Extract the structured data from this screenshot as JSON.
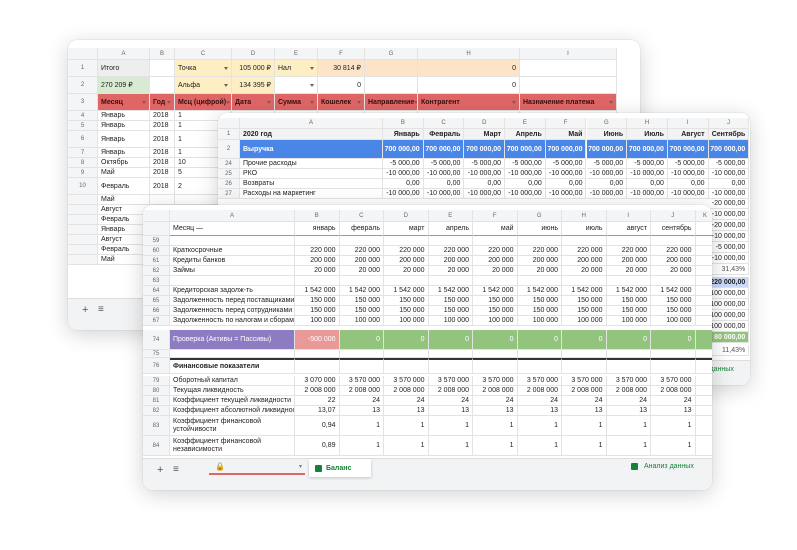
{
  "sheet1": {
    "columns": [
      "A",
      "B",
      "C",
      "D",
      "E",
      "F",
      "G",
      "H",
      "I"
    ],
    "rows": [
      {
        "num": "1",
        "cells": [
          "Итого",
          null,
          "Точка",
          "105 000 ₽",
          "Нал",
          "30 814 ₽",
          null,
          "0"
        ]
      },
      {
        "num": "2",
        "cells": [
          "270 209 ₽",
          null,
          "Альфа",
          "134 395 ₽",
          null,
          "0",
          null,
          "0"
        ]
      },
      {
        "num": "3",
        "cells": [
          "Месяц",
          "Год",
          "Мсц (цифрой)",
          "Дата",
          "Сумма",
          "Кошелек",
          "Направление",
          "Контрагент",
          "Назначение платежа"
        ]
      },
      {
        "num": "4",
        "cells": [
          "Январь",
          "2018",
          "1"
        ]
      },
      {
        "num": "5",
        "cells": [
          "Январь",
          "2018",
          "1"
        ]
      },
      {
        "num": "6",
        "cells": [
          "Январь",
          "2018",
          "1"
        ]
      },
      {
        "num": "7",
        "cells": [
          "Январь",
          "2018",
          "1"
        ]
      },
      {
        "num": "8",
        "cells": [
          "Октябрь",
          "2018",
          "10"
        ]
      },
      {
        "num": "9",
        "cells": [
          "Май",
          "2018",
          "5"
        ]
      },
      {
        "num": "10",
        "cells": [
          "Февраль",
          "2018",
          "2"
        ]
      },
      {
        "num": null,
        "cells": [
          "Май"
        ]
      },
      {
        "num": null,
        "cells": [
          "Август"
        ]
      },
      {
        "num": null,
        "cells": [
          "Февраль"
        ]
      },
      {
        "num": null,
        "cells": [
          "Январь"
        ]
      },
      {
        "num": null,
        "cells": [
          "Август"
        ]
      },
      {
        "num": null,
        "cells": [
          "Февраль"
        ]
      },
      {
        "num": null,
        "cells": [
          "Май"
        ]
      }
    ]
  },
  "sheet2": {
    "columns": [
      "A",
      "B",
      "C",
      "D",
      "E",
      "F",
      "G",
      "H",
      "I",
      "J"
    ],
    "rows": [
      {
        "num": "1",
        "cells": [
          "2020 год",
          "Январь",
          "Февраль",
          "Март",
          "Апрель",
          "Май",
          "Июнь",
          "Июль",
          "Август",
          "Сентябрь"
        ]
      },
      {
        "num": "2",
        "cells": [
          "Выручка",
          "700 000,00",
          "700 000,00",
          "700 000,00",
          "700 000,00",
          "700 000,00",
          "700 000,00",
          "700 000,00",
          "700 000,00",
          "700 000,00"
        ]
      },
      {
        "num": "24",
        "cells": [
          "Прочие расходы",
          "-5 000,00",
          "-5 000,00",
          "-5 000,00",
          "-5 000,00",
          "-5 000,00",
          "-5 000,00",
          "-5 000,00",
          "-5 000,00",
          "-5 000,00"
        ]
      },
      {
        "num": "25",
        "cells": [
          "РКО",
          "-10 000,00",
          "-10 000,00",
          "-10 000,00",
          "-10 000,00",
          "-10 000,00",
          "-10 000,00",
          "-10 000,00",
          "-10 000,00",
          "-10 000,00"
        ]
      },
      {
        "num": "26",
        "cells": [
          "Возвраты",
          "0,00",
          "0,00",
          "0,00",
          "0,00",
          "0,00",
          "0,00",
          "0,00",
          "0,00",
          "0,00"
        ]
      },
      {
        "num": "27",
        "cells": [
          "Расходы на маркетинг",
          "-10 000,00",
          "-10 000,00",
          "-10 000,00",
          "-10 000,00",
          "-10 000,00",
          "-10 000,00",
          "-10 000,00",
          "-10 000,00",
          "-10 000,00"
        ]
      }
    ],
    "column_j_more": [
      "-20 000,00",
      "-10 000,00",
      "-20 000,00",
      "-10 000,00",
      "-5 000,00",
      "-10 000,00",
      "31,43%",
      "220 000,00",
      "100 000,00",
      "100 000,00",
      "100 000,00",
      "100 000,00",
      "80 000,00",
      "11,43%"
    ],
    "tabs": {
      "analysis": "Анализ данных"
    }
  },
  "sheet3": {
    "columns": [
      "A",
      "B",
      "C",
      "D",
      "E",
      "F",
      "G",
      "H",
      "I",
      "J",
      "K"
    ],
    "rows": [
      {
        "num": null,
        "cells": [
          "Месяц —",
          "январь",
          "февраль",
          "март",
          "апрель",
          "май",
          "июнь",
          "июль",
          "август",
          "сентябрь"
        ]
      },
      {
        "num": "59",
        "cells": []
      },
      {
        "num": "60",
        "cells": [
          "Краткосрочные",
          "220 000",
          "220 000",
          "220 000",
          "220 000",
          "220 000",
          "220 000",
          "220 000",
          "220 000",
          "220 000"
        ]
      },
      {
        "num": "61",
        "cells": [
          "Кредиты банков",
          "200 000",
          "200 000",
          "200 000",
          "200 000",
          "200 000",
          "200 000",
          "200 000",
          "200 000",
          "200 000"
        ]
      },
      {
        "num": "62",
        "cells": [
          "Займы",
          "20 000",
          "20 000",
          "20 000",
          "20 000",
          "20 000",
          "20 000",
          "20 000",
          "20 000",
          "20 000"
        ]
      },
      {
        "num": "63",
        "cells": []
      },
      {
        "num": "64",
        "cells": [
          "Кредиторская задолж-ть",
          "1 542 000",
          "1 542 000",
          "1 542 000",
          "1 542 000",
          "1 542 000",
          "1 542 000",
          "1 542 000",
          "1 542 000",
          "1 542 000"
        ]
      },
      {
        "num": "65",
        "cells": [
          "Задолженность перед поставщиками",
          "150 000",
          "150 000",
          "150 000",
          "150 000",
          "150 000",
          "150 000",
          "150 000",
          "150 000",
          "150 000"
        ]
      },
      {
        "num": "66",
        "cells": [
          "Задолженность перед сотрудниками",
          "150 000",
          "150 000",
          "150 000",
          "150 000",
          "150 000",
          "150 000",
          "150 000",
          "150 000",
          "150 000"
        ]
      },
      {
        "num": "67",
        "cells": [
          "Задолженность по налогам и сборам",
          "100 000",
          "100 000",
          "100 000",
          "100 000",
          "100 000",
          "100 000",
          "100 000",
          "100 000",
          "100 000"
        ]
      },
      {
        "num": "74",
        "cells": [
          "Проверка (Активы = Пассивы)",
          "-500 000",
          "0",
          "0",
          "0",
          "0",
          "0",
          "0",
          "0",
          "0"
        ]
      },
      {
        "num": "75",
        "cells": []
      },
      {
        "num": "76",
        "cells": [
          "Финансовые показатели"
        ]
      },
      {
        "num": "79",
        "cells": [
          "Оборотный капитал",
          "3 070 000",
          "3 570 000",
          "3 570 000",
          "3 570 000",
          "3 570 000",
          "3 570 000",
          "3 570 000",
          "3 570 000",
          "3 570 000"
        ]
      },
      {
        "num": "80",
        "cells": [
          "Текущая ликвидность",
          "2 008 000",
          "2 008 000",
          "2 008 000",
          "2 008 000",
          "2 008 000",
          "2 008 000",
          "2 008 000",
          "2 008 000",
          "2 008 000"
        ]
      },
      {
        "num": "81",
        "cells": [
          "Коэффициент текущей ликвидности",
          "22",
          "24",
          "24",
          "24",
          "24",
          "24",
          "24",
          "24",
          "24"
        ]
      },
      {
        "num": "82",
        "cells": [
          "Коэффициент абсолютной ликвидности",
          "13,07",
          "13",
          "13",
          "13",
          "13",
          "13",
          "13",
          "13",
          "13"
        ]
      },
      {
        "num": "83",
        "cells": [
          "Коэффициент финансовой устойчивости",
          "0,94",
          "1",
          "1",
          "1",
          "1",
          "1",
          "1",
          "1",
          "1"
        ]
      },
      {
        "num": "84",
        "cells": [
          "Коэффициент финансовой независимости",
          "0,89",
          "1",
          "1",
          "1",
          "1",
          "1",
          "1",
          "1",
          "1"
        ]
      }
    ],
    "tabs": {
      "sheet": "Баланс",
      "analysis": "Анализ данных"
    }
  }
}
